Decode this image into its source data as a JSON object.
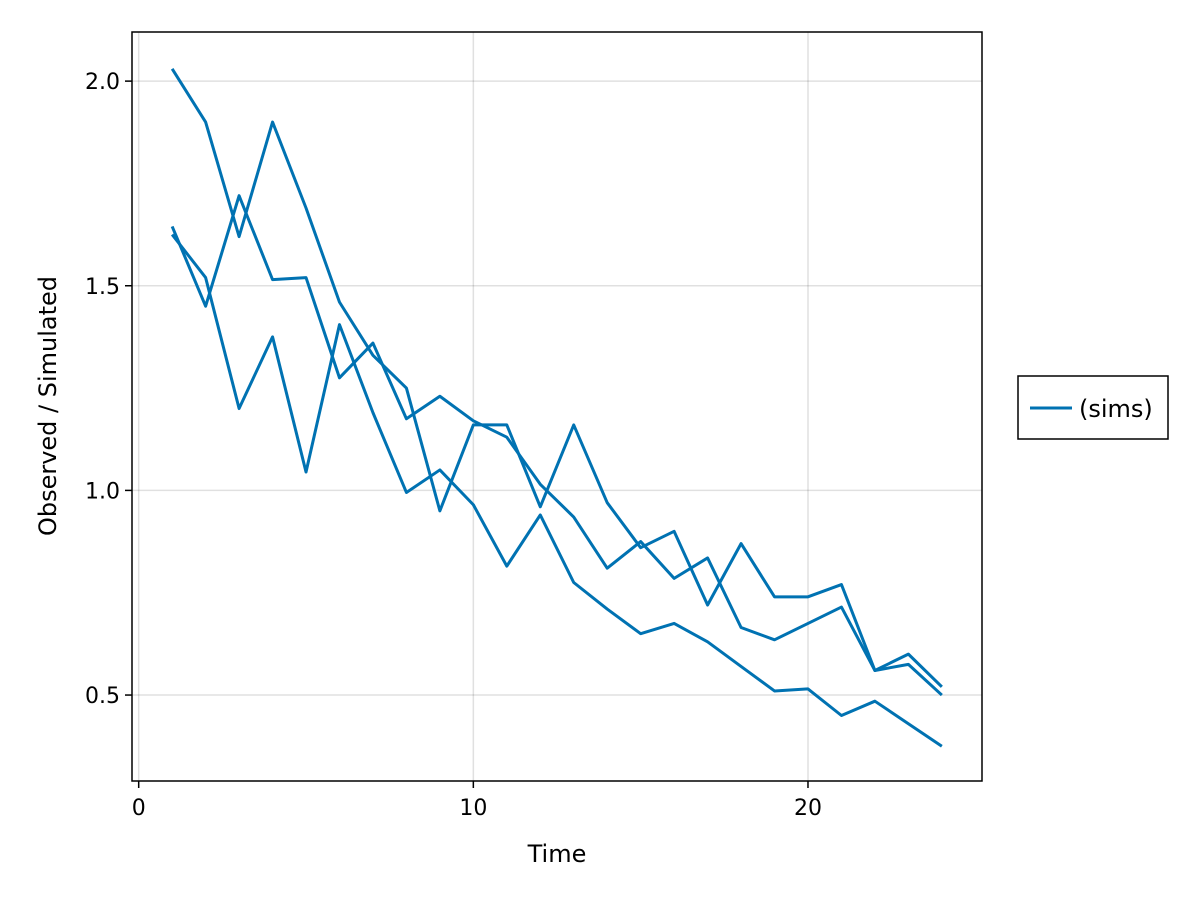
{
  "chart_data": {
    "type": "line",
    "title": "",
    "xlabel": "Time",
    "ylabel": "Observed / Simulated",
    "xlim": [
      -0.2,
      25.2
    ],
    "ylim": [
      0.29,
      2.12
    ],
    "xticks": [
      0,
      10,
      20
    ],
    "yticks": [
      0.5,
      1.0,
      1.5,
      2.0
    ],
    "xtick_labels": [
      "0",
      "10",
      "20"
    ],
    "ytick_labels": [
      "0.5",
      "1.0",
      "1.5",
      "2.0"
    ],
    "grid": true,
    "legend": {
      "placement": "right",
      "entries": [
        "(sims)"
      ]
    },
    "color": "#0072b2",
    "x": [
      1,
      2,
      3,
      4,
      5,
      6,
      7,
      8,
      9,
      10,
      11,
      12,
      13,
      14,
      15,
      16,
      17,
      18,
      19,
      20,
      21,
      22,
      23,
      24
    ],
    "series": [
      {
        "values": [
          2.03,
          1.9,
          1.62,
          1.9,
          1.69,
          1.46,
          1.33,
          1.25,
          0.95,
          1.16,
          1.16,
          0.96,
          1.16,
          0.97,
          0.86,
          0.9,
          0.72,
          0.87,
          0.74,
          0.74,
          0.77,
          0.56,
          0.6,
          0.52
        ]
      },
      {
        "values": [
          1.645,
          1.45,
          1.72,
          1.515,
          1.52,
          1.275,
          1.36,
          1.175,
          1.23,
          1.17,
          1.13,
          1.015,
          0.935,
          0.81,
          0.875,
          0.785,
          0.835,
          0.665,
          0.635,
          0.675,
          0.715,
          0.56,
          0.575,
          0.5
        ]
      },
      {
        "values": [
          1.625,
          1.52,
          1.2,
          1.375,
          1.045,
          1.405,
          1.19,
          0.995,
          1.05,
          0.965,
          0.815,
          0.94,
          0.775,
          0.71,
          0.65,
          0.675,
          0.63,
          0.57,
          0.51,
          0.515,
          0.45,
          0.485,
          0.43,
          0.375
        ]
      }
    ]
  }
}
